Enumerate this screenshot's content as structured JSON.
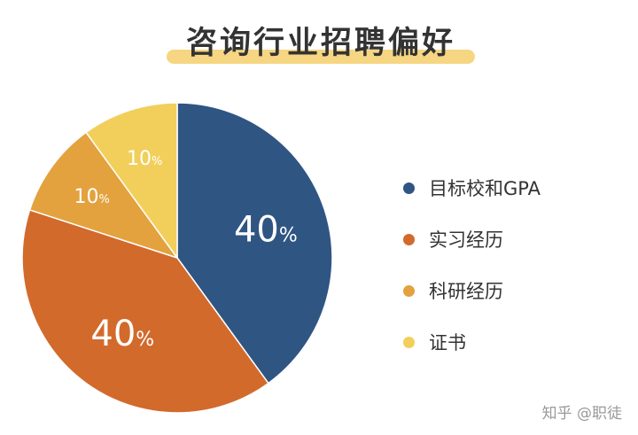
{
  "header": {
    "title": "咨询行业招聘偏好"
  },
  "chart_data": {
    "type": "pie",
    "title": "咨询行业招聘偏好",
    "slices": [
      {
        "label": "目标校和GPA",
        "value": 40,
        "display": "40",
        "unit": "%",
        "color": "#2f5583"
      },
      {
        "label": "实习经历",
        "value": 40,
        "display": "40",
        "unit": "%",
        "color": "#d26a2c"
      },
      {
        "label": "科研经历",
        "value": 10,
        "display": "10",
        "unit": "%",
        "color": "#e3a23e"
      },
      {
        "label": "证书",
        "value": 10,
        "display": "10",
        "unit": "%",
        "color": "#f2cf5b"
      }
    ],
    "start_angle_deg": 0,
    "direction": "clockwise",
    "legend": "right"
  },
  "watermark": {
    "text": "知乎 @职徒"
  }
}
